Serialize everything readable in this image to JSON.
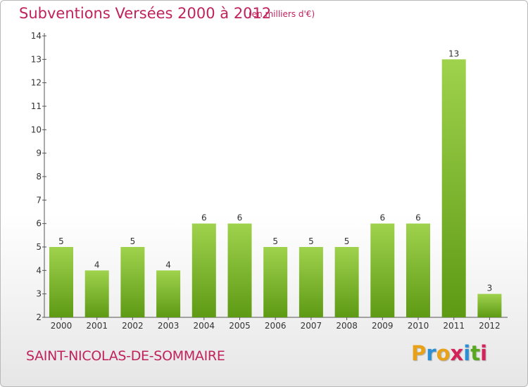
{
  "header": {
    "title": "Subventions Versées 2000 à 2012",
    "unit": "(en milliers d'€)"
  },
  "footer": {
    "commune": "SAINT-NICOLAS-DE-SOMMAIRE",
    "logo": [
      "P",
      "r",
      "o",
      "x",
      "i",
      "t",
      "i"
    ]
  },
  "colors": {
    "title": "#c0225b",
    "bar_top": "#9fd24d",
    "bar_bottom": "#5e9a14",
    "logo": [
      "#e8a21a",
      "#2a8fd4",
      "#e8a21a",
      "#d4225a",
      "#2a8fd4",
      "#5aa81f",
      "#d4225a"
    ]
  },
  "chart_data": {
    "type": "bar",
    "title": "Subventions Versées 2000 à 2012",
    "subtitle": "(en milliers d'€)",
    "categories": [
      "2000",
      "2001",
      "2002",
      "2003",
      "2004",
      "2005",
      "2006",
      "2007",
      "2008",
      "2009",
      "2010",
      "2011",
      "2012"
    ],
    "values": [
      5,
      4,
      5,
      4,
      6,
      6,
      5,
      5,
      5,
      6,
      6,
      13,
      3
    ],
    "ylim": [
      2,
      14
    ],
    "yticks": [
      2,
      3,
      4,
      5,
      6,
      7,
      8,
      9,
      10,
      11,
      12,
      13,
      14
    ],
    "data_labels": true,
    "grid": false
  }
}
